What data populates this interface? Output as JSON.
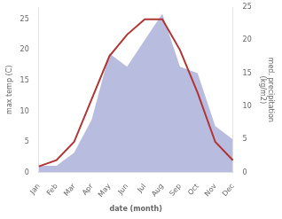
{
  "chart_data": {
    "type": "line",
    "categories": [
      "Jan",
      "Feb",
      "Mar",
      "Apr",
      "May",
      "Jun",
      "Jul",
      "Aug",
      "Sep",
      "Oct",
      "Nov",
      "Dec"
    ],
    "xlabel": "date (month)",
    "ylabel": "max temp (C)",
    "y2label": "med. precipitation\n(kg/m2)",
    "ylim": [
      0,
      27
    ],
    "yticks": [
      0,
      5,
      10,
      15,
      20,
      25
    ],
    "y2lim": [
      0,
      25
    ],
    "y2ticks": [
      0,
      5,
      10,
      15,
      20,
      25
    ],
    "grid": false,
    "series": [
      {
        "type": "area",
        "axis": "y2",
        "color": "#b8bcdf",
        "values": [
          1,
          1,
          3,
          8,
          18,
          16,
          20,
          24,
          16,
          15,
          7,
          5
        ]
      },
      {
        "type": "line",
        "color": "#b03535",
        "values": [
          1,
          2,
          5,
          12,
          19,
          22.5,
          25,
          25,
          20,
          13,
          5,
          2
        ]
      }
    ]
  }
}
